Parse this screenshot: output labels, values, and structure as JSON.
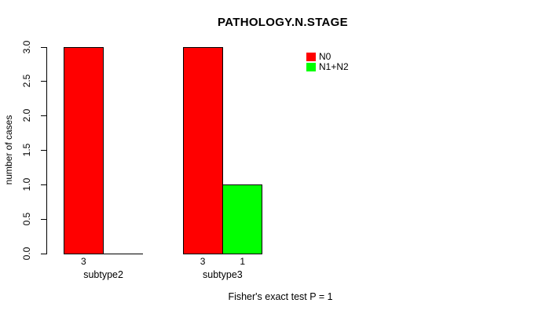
{
  "chart_data": {
    "type": "bar",
    "title": "PATHOLOGY.N.STAGE",
    "ylabel": "number of cases",
    "xlabel": "",
    "ylim": [
      0,
      3
    ],
    "yticks": [
      "0.0",
      "0.5",
      "1.0",
      "1.5",
      "2.0",
      "2.5",
      "3.0"
    ],
    "categories": [
      "subtype2",
      "subtype3"
    ],
    "series": [
      {
        "name": "N0",
        "color": "#ff0000",
        "values": [
          3,
          3
        ],
        "bar_labels": [
          "3",
          "3"
        ]
      },
      {
        "name": "N1+N2",
        "color": "#00ff00",
        "values": [
          0,
          1
        ],
        "bar_labels": [
          "",
          "1"
        ]
      }
    ],
    "annotation": "Fisher's exact test P = 1",
    "legend_position": "top-right",
    "grid": false,
    "background": "#ffffff",
    "axis_color": "#000000"
  }
}
